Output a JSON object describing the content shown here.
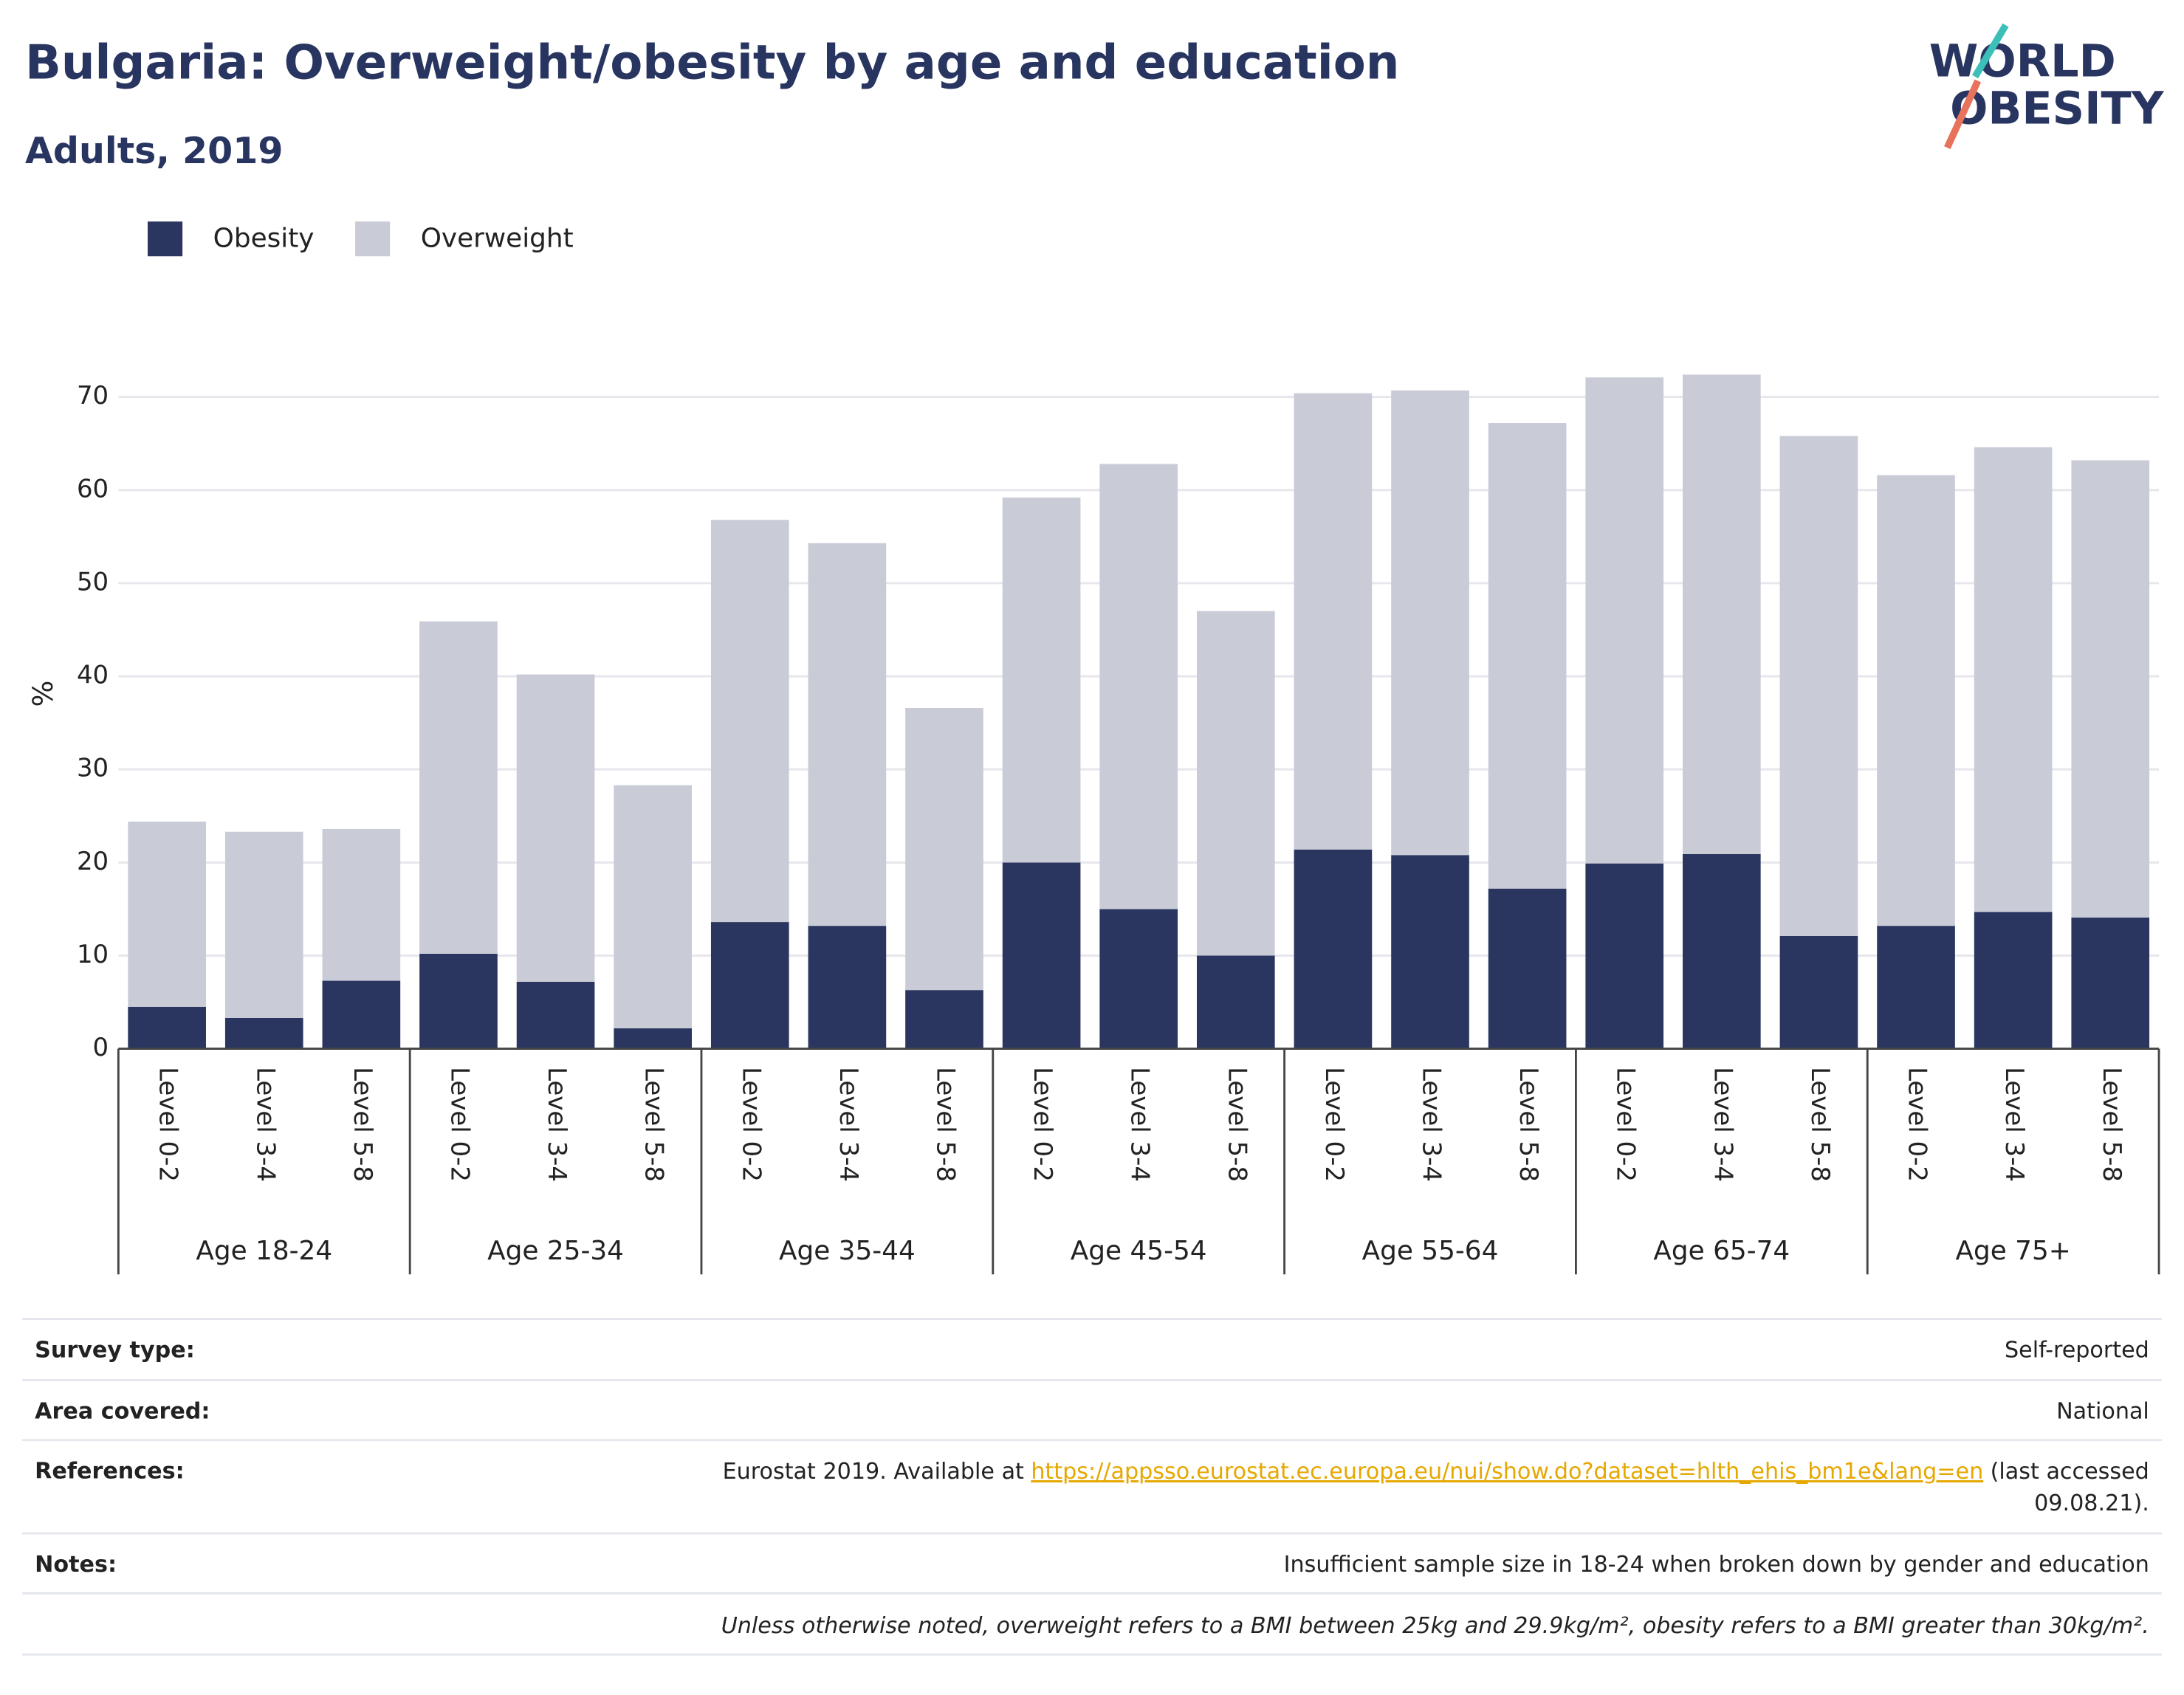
{
  "chart_data": {
    "type": "stacked-bar",
    "title": "Bulgaria: Overweight/obesity by age and education",
    "subtitle": "Adults, 2019",
    "logo": [
      "WORLD",
      "OBESITY"
    ],
    "ylabel": "%",
    "groups": [
      "Age 18-24",
      "Age 25-34",
      "Age 35-44",
      "Age 45-54",
      "Age 55-64",
      "Age 65-74",
      "Age 75+"
    ],
    "categories": [
      "Level 0-2",
      "Level 3-4",
      "Level 5-8",
      "Level 0-2",
      "Level 3-4",
      "Level 5-8",
      "Level 0-2",
      "Level 3-4",
      "Level 5-8",
      "Level 0-2",
      "Level 3-4",
      "Level 5-8",
      "Level 0-2",
      "Level 3-4",
      "Level 5-8",
      "Level 0-2",
      "Level 3-4",
      "Level 5-8",
      "Level 0-2",
      "Level 3-4",
      "Level 5-8"
    ],
    "series": [
      {
        "name": "Obesity",
        "color": "#2a365f",
        "values": [
          4.5,
          3.3,
          7.3,
          10.2,
          7.2,
          2.2,
          13.6,
          13.2,
          6.3,
          20.0,
          15.0,
          10.0,
          21.4,
          20.8,
          17.2,
          19.9,
          20.9,
          12.1,
          13.2,
          14.7,
          14.1
        ]
      },
      {
        "name": "Overweight",
        "color": "#c9cbd7",
        "values": [
          19.9,
          20.0,
          16.3,
          35.7,
          33.0,
          26.1,
          43.2,
          41.1,
          30.3,
          39.2,
          47.8,
          37.0,
          49.0,
          49.9,
          50.0,
          52.2,
          51.5,
          53.7,
          48.4,
          49.9,
          49.1
        ]
      }
    ],
    "ylim": [
      0,
      70
    ],
    "yticks": [
      0,
      10,
      20,
      30,
      40,
      50,
      60,
      70
    ],
    "grid": true,
    "legend": "top-left"
  },
  "table": {
    "rows": [
      {
        "label": "Survey type:",
        "value": "Self-reported"
      },
      {
        "label": "Area covered:",
        "value": "National"
      },
      {
        "label": "References:",
        "before": "Eurostat 2019. Available at",
        "link": "https://appsso.eurostat.ec.europa.eu/nui/show.do?dataset=hlth_ehis_bm1e&lang=en",
        "after": [
          "(last accessed",
          "09.08.21)."
        ]
      },
      {
        "label": "Notes:",
        "value": "Insufficient sample size in 18-24 when broken down by gender and education"
      }
    ],
    "footnote": "Unless otherwise noted, overweight refers to a BMI between 25kg and 29.9kg/m², obesity refers to a BMI greater than 30kg/m²."
  }
}
